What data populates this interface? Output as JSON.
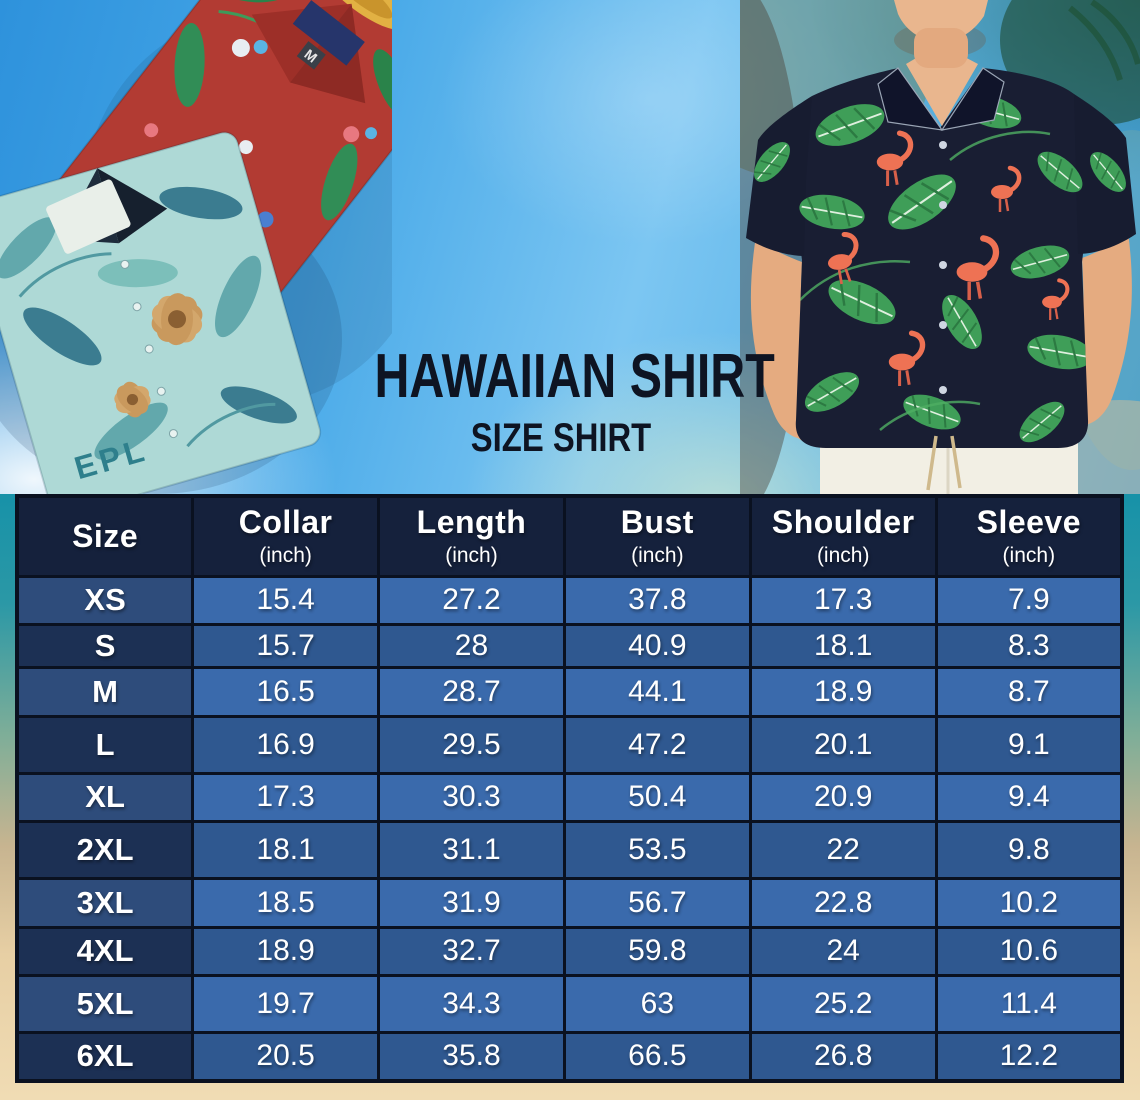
{
  "title": {
    "line1": "HAWAIIAN SHIRT",
    "line2": "SIZE SHIRT"
  },
  "hero": {
    "left_shirts": {
      "tag_size": "M",
      "shirt_print_text": "EPL"
    }
  },
  "table": {
    "columns": [
      {
        "label": "Size",
        "unit": ""
      },
      {
        "label": "Collar",
        "unit": "(inch)"
      },
      {
        "label": "Length",
        "unit": "(inch)"
      },
      {
        "label": "Bust",
        "unit": "(inch)"
      },
      {
        "label": "Shoulder",
        "unit": "(inch)"
      },
      {
        "label": "Sleeve",
        "unit": "(inch)"
      }
    ],
    "rows": [
      {
        "size": "XS",
        "values": [
          "15.4",
          "27.2",
          "37.8",
          "17.3",
          "7.9"
        ]
      },
      {
        "size": "S",
        "values": [
          "15.7",
          "28",
          "40.9",
          "18.1",
          "8.3"
        ]
      },
      {
        "size": "M",
        "values": [
          "16.5",
          "28.7",
          "44.1",
          "18.9",
          "8.7"
        ]
      },
      {
        "size": "L",
        "values": [
          "16.9",
          "29.5",
          "47.2",
          "20.1",
          "9.1"
        ]
      },
      {
        "size": "XL",
        "values": [
          "17.3",
          "30.3",
          "50.4",
          "20.9",
          "9.4"
        ]
      },
      {
        "size": "2XL",
        "values": [
          "18.1",
          "31.1",
          "53.5",
          "22",
          "9.8"
        ]
      },
      {
        "size": "3XL",
        "values": [
          "18.5",
          "31.9",
          "56.7",
          "22.8",
          "10.2"
        ]
      },
      {
        "size": "4XL",
        "values": [
          "18.9",
          "32.7",
          "59.8",
          "24",
          "10.6"
        ]
      },
      {
        "size": "5XL",
        "values": [
          "19.7",
          "34.3",
          "63",
          "25.2",
          "11.4"
        ]
      },
      {
        "size": "6XL",
        "values": [
          "20.5",
          "35.8",
          "66.5",
          "26.8",
          "12.2"
        ]
      }
    ]
  },
  "chart_data": {
    "type": "table",
    "title": "HAWAIIAN SHIRT SIZE SHIRT",
    "columns": [
      "Size",
      "Collar (inch)",
      "Length (inch)",
      "Bust (inch)",
      "Shoulder (inch)",
      "Sleeve (inch)"
    ],
    "rows": [
      [
        "XS",
        15.4,
        27.2,
        37.8,
        17.3,
        7.9
      ],
      [
        "S",
        15.7,
        28,
        40.9,
        18.1,
        8.3
      ],
      [
        "M",
        16.5,
        28.7,
        44.1,
        18.9,
        8.7
      ],
      [
        "L",
        16.9,
        29.5,
        47.2,
        20.1,
        9.1
      ],
      [
        "XL",
        17.3,
        30.3,
        50.4,
        20.9,
        9.4
      ],
      [
        "2XL",
        18.1,
        31.1,
        53.5,
        22,
        9.8
      ],
      [
        "3XL",
        18.5,
        31.9,
        56.7,
        22.8,
        10.2
      ],
      [
        "4XL",
        18.9,
        32.7,
        59.8,
        24,
        10.6
      ],
      [
        "5XL",
        19.7,
        34.3,
        63,
        25.2,
        11.4
      ],
      [
        "6XL",
        20.5,
        35.8,
        66.5,
        26.8,
        12.2
      ]
    ]
  },
  "colors": {
    "header_bg": "#15213c",
    "row_light_bg": "#3a6aac",
    "row_dark_bg": "#2f5890",
    "size_light_bg": "#2e4c7b",
    "size_dark_bg": "#1c3054",
    "table_border": "#0a1120",
    "table_text": "#ffffff",
    "title_text": "#0e1422",
    "sky_blue": "#48a9e8",
    "ocean_teal": "#1792a8",
    "sand": "#f0dcb4",
    "shirt_red": "#b23b33",
    "shirt_teal": "#aed9d6",
    "man_shirt_navy": "#191e33",
    "leaf_green": "#3f9e58",
    "flamingo": "#ee7254"
  }
}
